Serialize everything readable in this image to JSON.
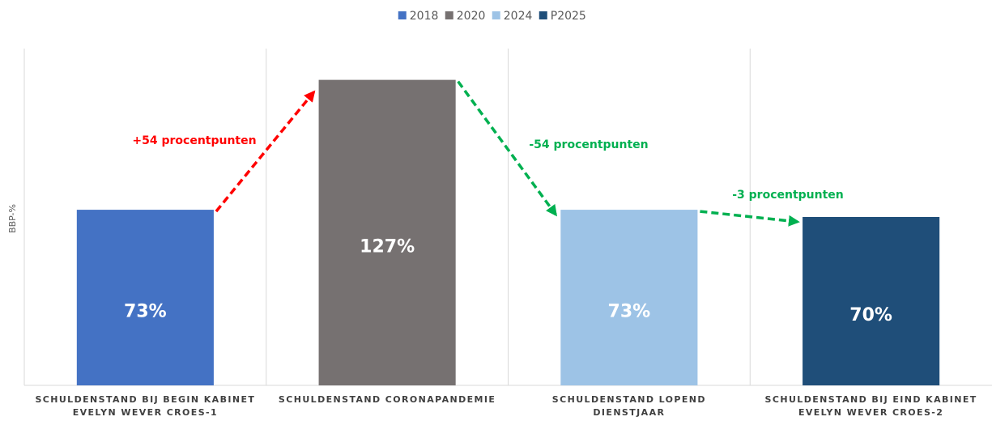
{
  "chart_data": {
    "type": "bar",
    "y_label": "BBP-%",
    "categories": [
      "SCHULDENSTAND BIJ BEGIN KABINET\nEVELYN WEVER CROES-1",
      "SCHULDENSTAND CORONAPANDEMIE",
      "SCHULDENSTAND LOPEND\nDIENSTJAAR",
      "SCHULDENSTAND BIJ EIND KABINET\nEVELYN WEVER CROES-2"
    ],
    "series": [
      {
        "name": "2018",
        "color": "#4472c4",
        "values": [
          73,
          null,
          null,
          null
        ],
        "value_labels": [
          "73%",
          null,
          null,
          null
        ]
      },
      {
        "name": "2020",
        "color": "#767171",
        "values": [
          null,
          127,
          null,
          null
        ],
        "value_labels": [
          null,
          "127%",
          null,
          null
        ]
      },
      {
        "name": "2024",
        "color": "#9dc3e6",
        "values": [
          null,
          null,
          73,
          null
        ],
        "value_labels": [
          null,
          null,
          "73%",
          null
        ]
      },
      {
        "name": "P2025",
        "color": "#1f4e79",
        "values": [
          null,
          null,
          null,
          70
        ],
        "value_labels": [
          null,
          null,
          null,
          "70%"
        ]
      }
    ],
    "annotations": [
      {
        "text": "+54 procentpunten",
        "color": "#ff0000"
      },
      {
        "text": "-54 procentpunten",
        "color": "#00b050"
      },
      {
        "text": "-3 procentpunten",
        "color": "#00b050"
      }
    ],
    "ylim": [
      0,
      140
    ],
    "legend": "top"
  }
}
